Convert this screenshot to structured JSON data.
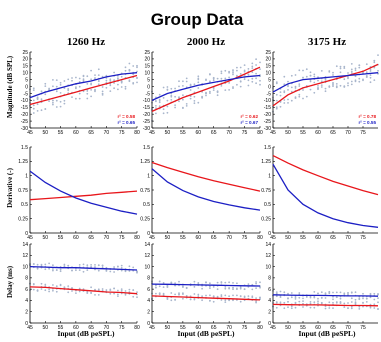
{
  "title": "Group Data",
  "columns": [
    "1260 Hz",
    "2000 Hz",
    "3175 Hz"
  ],
  "row_ylabels": [
    "Magnitude (dB SPL)",
    "Derivative (-)",
    "Delay (ms)"
  ],
  "xlabel": "Input (dB peSPL)",
  "colors": {
    "series_a": "#e8161b",
    "series_b": "#1c1fc4",
    "dots": "#a9b6cc",
    "axes": "#000000"
  },
  "chart_data": [
    {
      "type": "line",
      "panel": "magnitude-1260",
      "x": [
        45,
        50,
        55,
        60,
        65,
        70,
        75,
        80
      ],
      "ylim": [
        -30,
        25
      ],
      "yticks": [
        -30,
        -25,
        -20,
        -15,
        -10,
        -5,
        0,
        5,
        10,
        15,
        20,
        25
      ],
      "xticks": [
        45,
        50,
        55,
        60,
        65,
        70,
        75,
        80
      ],
      "series": [
        {
          "color": "red",
          "values": [
            -13,
            -10,
            -7,
            -4,
            -1,
            2,
            5,
            8
          ]
        },
        {
          "color": "blue",
          "values": [
            -8,
            -4,
            -1,
            2,
            4,
            7,
            9,
            10
          ]
        }
      ],
      "annotations": [
        {
          "text": "r² = 0.58",
          "color": "red"
        },
        {
          "text": "r² = 0.65",
          "color": "blue"
        }
      ],
      "scatter_band": true
    },
    {
      "type": "line",
      "panel": "magnitude-2000",
      "x": [
        45,
        50,
        55,
        60,
        65,
        70,
        75,
        80
      ],
      "ylim": [
        -30,
        25
      ],
      "yticks": [
        -30,
        -25,
        -20,
        -15,
        -10,
        -5,
        0,
        5,
        10,
        15,
        20,
        25
      ],
      "xticks": [
        45,
        50,
        55,
        60,
        65,
        70,
        75,
        80
      ],
      "series": [
        {
          "color": "red",
          "values": [
            -18,
            -13,
            -8,
            -4,
            0,
            4,
            9,
            14
          ]
        },
        {
          "color": "blue",
          "values": [
            -10,
            -5,
            -2,
            1,
            3,
            5,
            7,
            8
          ]
        }
      ],
      "annotations": [
        {
          "text": "r² = 0.62",
          "color": "red"
        },
        {
          "text": "r² = 0.67",
          "color": "blue"
        }
      ],
      "scatter_band": true
    },
    {
      "type": "line",
      "panel": "magnitude-3175",
      "x": [
        45,
        50,
        55,
        60,
        65,
        70,
        75,
        80
      ],
      "ylim": [
        -30,
        25
      ],
      "yticks": [
        -30,
        -25,
        -20,
        -15,
        -10,
        -5,
        0,
        5,
        10,
        15,
        20,
        25
      ],
      "xticks": [
        45,
        50,
        55,
        60,
        65,
        70,
        75
      ],
      "series": [
        {
          "color": "red",
          "values": [
            -14,
            -6,
            -1,
            2,
            5,
            8,
            11,
            16
          ]
        },
        {
          "color": "blue",
          "values": [
            -4,
            2,
            5,
            6,
            7,
            8,
            9,
            10
          ]
        }
      ],
      "annotations": [
        {
          "text": "r² = 0.78",
          "color": "red"
        },
        {
          "text": "r² = 0.55",
          "color": "blue"
        }
      ],
      "scatter_band": true
    },
    {
      "type": "line",
      "panel": "derivative-1260",
      "x": [
        45,
        50,
        55,
        60,
        65,
        70,
        75,
        80
      ],
      "ylim": [
        0,
        1.5
      ],
      "yticks": [
        0,
        0.25,
        0.5,
        0.75,
        1,
        1.25,
        1.5
      ],
      "xticks": [
        45,
        50,
        55,
        60,
        65,
        70,
        75,
        80
      ],
      "series": [
        {
          "color": "red",
          "values": [
            0.58,
            0.6,
            0.62,
            0.64,
            0.66,
            0.69,
            0.71,
            0.73
          ]
        },
        {
          "color": "blue",
          "values": [
            1.08,
            0.88,
            0.73,
            0.61,
            0.52,
            0.45,
            0.38,
            0.33
          ]
        }
      ]
    },
    {
      "type": "line",
      "panel": "derivative-2000",
      "x": [
        45,
        50,
        55,
        60,
        65,
        70,
        75,
        80
      ],
      "ylim": [
        0,
        1.5
      ],
      "yticks": [
        0,
        0.25,
        0.5,
        0.75,
        1,
        1.25,
        1.5
      ],
      "xticks": [
        45,
        50,
        55,
        60,
        65,
        70,
        75,
        80
      ],
      "series": [
        {
          "color": "red",
          "values": [
            1.23,
            1.14,
            1.06,
            0.98,
            0.91,
            0.85,
            0.79,
            0.73
          ]
        },
        {
          "color": "blue",
          "values": [
            1.12,
            0.89,
            0.74,
            0.63,
            0.55,
            0.49,
            0.44,
            0.4
          ]
        }
      ]
    },
    {
      "type": "line",
      "panel": "derivative-3175",
      "x": [
        45,
        50,
        55,
        60,
        65,
        70,
        75,
        80
      ],
      "ylim": [
        0,
        1.5
      ],
      "yticks": [
        0,
        0.25,
        0.5,
        0.75,
        1,
        1.25,
        1.5
      ],
      "xticks": [
        45,
        50,
        55,
        60,
        65,
        70,
        75
      ],
      "series": [
        {
          "color": "red",
          "values": [
            1.35,
            1.22,
            1.1,
            1.0,
            0.9,
            0.82,
            0.74,
            0.67
          ]
        },
        {
          "color": "blue",
          "values": [
            1.2,
            0.75,
            0.5,
            0.35,
            0.25,
            0.18,
            0.13,
            0.1
          ]
        }
      ]
    },
    {
      "type": "line",
      "panel": "delay-1260",
      "x": [
        45,
        50,
        55,
        60,
        65,
        70,
        75,
        80
      ],
      "ylim": [
        0,
        14
      ],
      "yticks": [
        0,
        2,
        4,
        6,
        8,
        10,
        12,
        14
      ],
      "xticks": [
        45,
        50,
        55,
        60,
        65,
        70,
        75,
        80
      ],
      "series": [
        {
          "color": "red",
          "values": [
            6.4,
            6.3,
            6.1,
            5.9,
            5.7,
            5.5,
            5.4,
            5.2
          ]
        },
        {
          "color": "blue",
          "values": [
            10,
            9.9,
            9.8,
            9.8,
            9.7,
            9.6,
            9.5,
            9.4
          ]
        }
      ],
      "scatter_band": true
    },
    {
      "type": "line",
      "panel": "delay-2000",
      "x": [
        45,
        50,
        55,
        60,
        65,
        70,
        75,
        80
      ],
      "ylim": [
        0,
        14
      ],
      "yticks": [
        0,
        2,
        4,
        6,
        8,
        10,
        12,
        14
      ],
      "xticks": [
        45,
        50,
        55,
        60,
        65,
        70,
        75,
        80
      ],
      "series": [
        {
          "color": "red",
          "values": [
            4.8,
            4.7,
            4.6,
            4.5,
            4.4,
            4.3,
            4.2,
            4.1
          ]
        },
        {
          "color": "blue",
          "values": [
            6.9,
            6.85,
            6.8,
            6.75,
            6.7,
            6.65,
            6.6,
            6.55
          ]
        }
      ],
      "scatter_band": true
    },
    {
      "type": "line",
      "panel": "delay-3175",
      "x": [
        45,
        50,
        55,
        60,
        65,
        70,
        75,
        80
      ],
      "ylim": [
        0,
        14
      ],
      "yticks": [
        0,
        2,
        4,
        6,
        8,
        10,
        12,
        14
      ],
      "xticks": [
        45,
        50,
        55,
        60,
        65,
        70,
        75
      ],
      "series": [
        {
          "color": "red",
          "values": [
            3.3,
            3.25,
            3.2,
            3.2,
            3.15,
            3.1,
            3.1,
            3.05
          ]
        },
        {
          "color": "blue",
          "values": [
            5.0,
            4.95,
            4.9,
            4.9,
            4.85,
            4.8,
            4.8,
            4.75
          ]
        }
      ],
      "scatter_band": true
    }
  ]
}
